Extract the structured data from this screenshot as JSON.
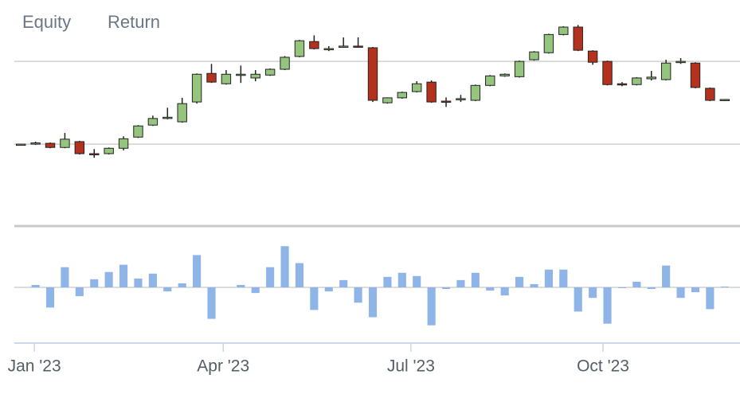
{
  "header": {
    "tabs": [
      "Equity",
      "Return"
    ]
  },
  "chart_data": [
    {
      "type": "candlestick",
      "open": [
        100.0,
        100.0,
        100.2,
        99.2,
        100.6,
        97.7,
        97.7,
        99.0,
        101.7,
        104.6,
        106.2,
        105.4,
        110.2,
        117.1,
        114.6,
        116.7,
        116.0,
        116.7,
        118.1,
        121.2,
        124.8,
        123.1,
        123.5,
        123.7,
        123.3,
        110.0,
        111.2,
        112.7,
        115.0,
        110.4,
        110.8,
        110.6,
        114.2,
        116.5,
        116.3,
        120.4,
        122.1,
        126.5,
        128.3,
        122.5,
        120.0,
        114.6,
        114.4,
        115.8,
        115.6,
        119.8,
        119.6,
        113.5,
        110.6
      ],
      "high": [
        100.0,
        100.6,
        100.4,
        102.7,
        100.8,
        98.8,
        99.2,
        101.9,
        104.6,
        106.9,
        108.8,
        111.2,
        117.1,
        119.4,
        117.9,
        119.0,
        117.9,
        118.3,
        121.3,
        125.2,
        126.3,
        123.7,
        125.8,
        125.8,
        123.5,
        111.3,
        112.7,
        115.2,
        115.4,
        111.3,
        111.9,
        114.4,
        116.7,
        117.1,
        120.2,
        122.5,
        126.7,
        128.5,
        128.8,
        122.7,
        120.2,
        115.0,
        116.2,
        117.7,
        120.4,
        120.8,
        119.8,
        113.7,
        110.8
      ],
      "low": [
        100.0,
        99.8,
        99.0,
        99.0,
        97.5,
        96.7,
        97.5,
        98.5,
        101.5,
        104.4,
        106.0,
        105.2,
        109.8,
        114.8,
        114.4,
        114.8,
        115.2,
        116.5,
        117.9,
        121.0,
        122.9,
        122.5,
        123.3,
        123.3,
        110.2,
        109.8,
        111.0,
        112.5,
        110.0,
        109.0,
        110.2,
        110.4,
        114.0,
        116.3,
        116.1,
        120.2,
        121.9,
        126.3,
        122.5,
        119.2,
        114.2,
        114.0,
        114.2,
        115.4,
        115.4,
        119.4,
        113.5,
        110.4,
        110.4
      ],
      "close": [
        100.0,
        100.3,
        99.2,
        101.2,
        97.7,
        97.5,
        99.0,
        101.3,
        104.4,
        106.2,
        106.5,
        109.8,
        116.9,
        115.0,
        116.9,
        116.9,
        116.9,
        118.1,
        121.0,
        125.0,
        123.1,
        123.1,
        123.7,
        123.5,
        110.6,
        111.2,
        112.5,
        114.6,
        110.2,
        110.2,
        111.0,
        114.2,
        116.5,
        116.9,
        120.0,
        122.3,
        126.5,
        128.3,
        122.7,
        119.8,
        114.4,
        114.4,
        116.0,
        116.2,
        119.6,
        120.0,
        113.7,
        110.6,
        110.8
      ],
      "up_color": "#94c47d",
      "down_color": "#b3311d",
      "xlim": [
        -0.5,
        48.5
      ],
      "ylim": [
        80,
        131
      ],
      "grid_lines": [
        100,
        120
      ]
    },
    {
      "type": "bar",
      "values": [
        0.0,
        0.3,
        -2.5,
        2.5,
        -1.1,
        1.0,
        1.9,
        2.8,
        1.1,
        1.7,
        -0.5,
        0.5,
        4.0,
        -3.9,
        0.0,
        0.3,
        -0.7,
        2.5,
        5.1,
        3.0,
        -2.8,
        -0.5,
        0.9,
        -1.9,
        -3.7,
        1.3,
        1.8,
        1.4,
        -4.7,
        -0.2,
        0.9,
        1.8,
        -0.4,
        -1.0,
        1.3,
        0.4,
        2.2,
        2.2,
        -3.0,
        -1.3,
        -4.5,
        -0.1,
        0.7,
        -0.2,
        2.7,
        -1.3,
        -0.6,
        -2.7,
        0.1
      ],
      "color": "#8fb4e8",
      "xlim": [
        -0.5,
        48.5
      ],
      "ylim": [
        -7,
        7
      ],
      "xticks": [
        {
          "value": 0.92,
          "label": "Jan '23"
        },
        {
          "value": 13.8,
          "label": "Apr '23"
        },
        {
          "value": 26.6,
          "label": "Jul '23"
        },
        {
          "value": 39.7,
          "label": "Oct '23"
        }
      ]
    }
  ]
}
